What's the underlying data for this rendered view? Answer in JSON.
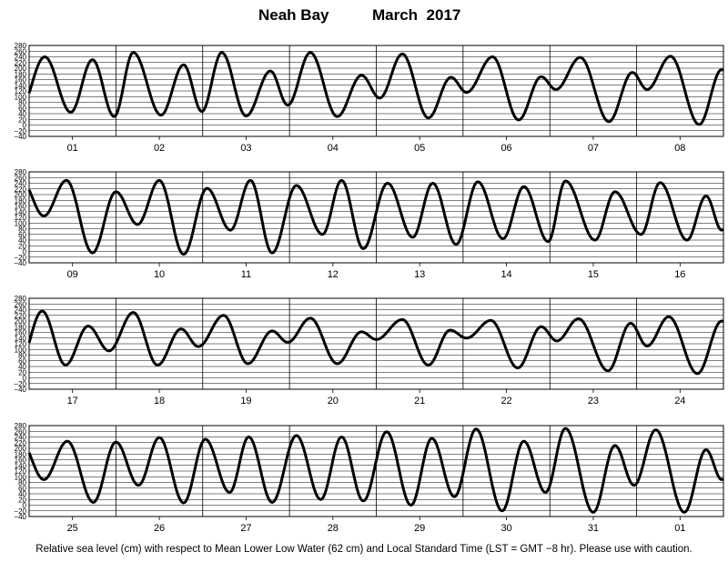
{
  "header": {
    "station": "Neah Bay",
    "month": "March",
    "year": "2017"
  },
  "caption": "Relative sea level (cm) with respect to Mean Lower Low Water (62 cm) and Local Standard Time (LST = GMT −8 hr). Please use with caution.",
  "chart_data": {
    "type": "line",
    "title": "Neah Bay March 2017",
    "ylabel_units": "cm",
    "ylim": [
      -40,
      280
    ],
    "ytick_labels": [
      "−40",
      "−20",
      "0",
      "20",
      "40",
      "60",
      "80",
      "100",
      "120",
      "140",
      "160",
      "180",
      "200",
      "220",
      "240",
      "260",
      "280"
    ],
    "grid": true,
    "panels": [
      {
        "day_labels": [
          "01",
          "02",
          "03",
          "04",
          "05",
          "06",
          "07",
          "08"
        ],
        "series": [
          {
            "x_day": 1,
            "extrema": [
              {
                "t": 0.18,
                "h": 240
              },
              {
                "t": 0.48,
                "h": 45
              },
              {
                "t": 0.73,
                "h": 230
              },
              {
                "t": 0.98,
                "h": 30
              }
            ]
          },
          {
            "x_day": 2,
            "extrema": [
              {
                "t": 0.2,
                "h": 255
              },
              {
                "t": 0.52,
                "h": 35
              },
              {
                "t": 0.78,
                "h": 212
              },
              {
                "t": 0.99,
                "h": 48
              }
            ]
          },
          {
            "x_day": 3,
            "extrema": [
              {
                "t": 0.22,
                "h": 255
              },
              {
                "t": 0.5,
                "h": 32
              },
              {
                "t": 0.78,
                "h": 190
              },
              {
                "t": 0.98,
                "h": 70
              }
            ]
          },
          {
            "x_day": 4,
            "extrema": [
              {
                "t": 0.24,
                "h": 255
              },
              {
                "t": 0.55,
                "h": 30
              },
              {
                "t": 0.83,
                "h": 175
              }
            ]
          },
          {
            "x_day": 5,
            "extrema": [
              {
                "t": 0.04,
                "h": 95
              },
              {
                "t": 0.3,
                "h": 250
              },
              {
                "t": 0.6,
                "h": 25
              },
              {
                "t": 0.86,
                "h": 168
              }
            ]
          },
          {
            "x_day": 6,
            "extrema": [
              {
                "t": 0.04,
                "h": 115
              },
              {
                "t": 0.34,
                "h": 240
              },
              {
                "t": 0.64,
                "h": 18
              },
              {
                "t": 0.9,
                "h": 170
              }
            ]
          },
          {
            "x_day": 7,
            "extrema": [
              {
                "t": 0.07,
                "h": 125
              },
              {
                "t": 0.35,
                "h": 238
              },
              {
                "t": 0.68,
                "h": 12
              },
              {
                "t": 0.95,
                "h": 185
              }
            ]
          },
          {
            "x_day": 8,
            "extrema": [
              {
                "t": 0.12,
                "h": 125
              },
              {
                "t": 0.39,
                "h": 242
              },
              {
                "t": 0.72,
                "h": 2
              },
              {
                "t": 0.98,
                "h": 195
              }
            ]
          }
        ]
      },
      {
        "day_labels": [
          "09",
          "10",
          "11",
          "12",
          "13",
          "14",
          "15",
          "16"
        ],
        "series": [
          {
            "x_day": 9,
            "extrema": [
              {
                "t": 0.17,
                "h": 125
              },
              {
                "t": 0.43,
                "h": 250
              },
              {
                "t": 0.73,
                "h": -5
              }
            ]
          },
          {
            "x_day": 10,
            "extrema": [
              {
                "t": 0.0,
                "h": 210
              },
              {
                "t": 0.25,
                "h": 95
              },
              {
                "t": 0.5,
                "h": 250
              },
              {
                "t": 0.78,
                "h": -10
              }
            ]
          },
          {
            "x_day": 11,
            "extrema": [
              {
                "t": 0.05,
                "h": 222
              },
              {
                "t": 0.32,
                "h": 75
              },
              {
                "t": 0.55,
                "h": 250
              },
              {
                "t": 0.8,
                "h": -5
              }
            ]
          },
          {
            "x_day": 12,
            "extrema": [
              {
                "t": 0.08,
                "h": 232
              },
              {
                "t": 0.38,
                "h": 60
              },
              {
                "t": 0.6,
                "h": 250
              },
              {
                "t": 0.85,
                "h": 10
              }
            ]
          },
          {
            "x_day": 13,
            "extrema": [
              {
                "t": 0.13,
                "h": 240
              },
              {
                "t": 0.42,
                "h": 50
              },
              {
                "t": 0.65,
                "h": 240
              },
              {
                "t": 0.92,
                "h": 25
              }
            ]
          },
          {
            "x_day": 14,
            "extrema": [
              {
                "t": 0.17,
                "h": 245
              },
              {
                "t": 0.46,
                "h": 45
              },
              {
                "t": 0.7,
                "h": 228
              },
              {
                "t": 0.98,
                "h": 35
              }
            ]
          },
          {
            "x_day": 15,
            "extrema": [
              {
                "t": 0.18,
                "h": 248
              },
              {
                "t": 0.52,
                "h": 40
              },
              {
                "t": 0.75,
                "h": 210
              }
            ]
          },
          {
            "x_day": 16,
            "extrema": [
              {
                "t": 0.05,
                "h": 60
              },
              {
                "t": 0.27,
                "h": 242
              },
              {
                "t": 0.58,
                "h": 40
              },
              {
                "t": 0.8,
                "h": 195
              },
              {
                "t": 0.98,
                "h": 75
              }
            ]
          }
        ]
      },
      {
        "day_labels": [
          "17",
          "18",
          "19",
          "20",
          "21",
          "22",
          "23",
          "24"
        ],
        "series": [
          {
            "x_day": 17,
            "extrema": [
              {
                "t": 0.15,
                "h": 235
              },
              {
                "t": 0.42,
                "h": 45
              },
              {
                "t": 0.68,
                "h": 182
              },
              {
                "t": 0.92,
                "h": 95
              }
            ]
          },
          {
            "x_day": 18,
            "extrema": [
              {
                "t": 0.2,
                "h": 230
              },
              {
                "t": 0.48,
                "h": 45
              },
              {
                "t": 0.75,
                "h": 172
              },
              {
                "t": 0.95,
                "h": 110
              }
            ]
          },
          {
            "x_day": 19,
            "extrema": [
              {
                "t": 0.24,
                "h": 220
              },
              {
                "t": 0.52,
                "h": 50
              },
              {
                "t": 0.8,
                "h": 165
              },
              {
                "t": 0.98,
                "h": 125
              }
            ]
          },
          {
            "x_day": 20,
            "extrema": [
              {
                "t": 0.24,
                "h": 210
              },
              {
                "t": 0.55,
                "h": 50
              },
              {
                "t": 0.83,
                "h": 162
              }
            ]
          },
          {
            "x_day": 21,
            "extrema": [
              {
                "t": 0.0,
                "h": 135
              },
              {
                "t": 0.3,
                "h": 205
              },
              {
                "t": 0.6,
                "h": 45
              },
              {
                "t": 0.85,
                "h": 168
              }
            ]
          },
          {
            "x_day": 22,
            "extrema": [
              {
                "t": 0.04,
                "h": 140
              },
              {
                "t": 0.32,
                "h": 202
              },
              {
                "t": 0.63,
                "h": 35
              },
              {
                "t": 0.9,
                "h": 180
              }
            ]
          },
          {
            "x_day": 23,
            "extrema": [
              {
                "t": 0.08,
                "h": 130
              },
              {
                "t": 0.33,
                "h": 208
              },
              {
                "t": 0.67,
                "h": 25
              },
              {
                "t": 0.93,
                "h": 192
              }
            ]
          },
          {
            "x_day": 24,
            "extrema": [
              {
                "t": 0.12,
                "h": 112
              },
              {
                "t": 0.37,
                "h": 215
              },
              {
                "t": 0.7,
                "h": 15
              },
              {
                "t": 0.98,
                "h": 200
              }
            ]
          }
        ]
      },
      {
        "day_labels": [
          "25",
          "26",
          "27",
          "28",
          "29",
          "30",
          "31",
          "01"
        ],
        "series": [
          {
            "x_day": 25,
            "extrema": [
              {
                "t": 0.17,
                "h": 90
              },
              {
                "t": 0.44,
                "h": 225
              },
              {
                "t": 0.74,
                "h": 10
              }
            ]
          },
          {
            "x_day": 26,
            "extrema": [
              {
                "t": 0.0,
                "h": 222
              },
              {
                "t": 0.26,
                "h": 70
              },
              {
                "t": 0.5,
                "h": 238
              },
              {
                "t": 0.78,
                "h": 8
              }
            ]
          },
          {
            "x_day": 27,
            "extrema": [
              {
                "t": 0.03,
                "h": 232
              },
              {
                "t": 0.31,
                "h": 45
              },
              {
                "t": 0.53,
                "h": 240
              },
              {
                "t": 0.8,
                "h": 10
              }
            ]
          },
          {
            "x_day": 28,
            "extrema": [
              {
                "t": 0.08,
                "h": 245
              },
              {
                "t": 0.36,
                "h": 20
              },
              {
                "t": 0.6,
                "h": 240
              },
              {
                "t": 0.85,
                "h": 15
              }
            ]
          },
          {
            "x_day": 29,
            "extrema": [
              {
                "t": 0.12,
                "h": 258
              },
              {
                "t": 0.4,
                "h": 0
              },
              {
                "t": 0.64,
                "h": 235
              },
              {
                "t": 0.9,
                "h": 30
              }
            ]
          },
          {
            "x_day": 30,
            "extrema": [
              {
                "t": 0.15,
                "h": 268
              },
              {
                "t": 0.45,
                "h": -20
              },
              {
                "t": 0.7,
                "h": 225
              },
              {
                "t": 0.95,
                "h": 45
              }
            ]
          },
          {
            "x_day": 31,
            "extrema": [
              {
                "t": 0.18,
                "h": 270
              },
              {
                "t": 0.5,
                "h": -25
              },
              {
                "t": 0.75,
                "h": 210
              },
              {
                "t": 0.97,
                "h": 70
              }
            ]
          },
          {
            "x_day": 1,
            "extrema": [
              {
                "t": 0.22,
                "h": 265
              },
              {
                "t": 0.55,
                "h": -25
              },
              {
                "t": 0.8,
                "h": 195
              },
              {
                "t": 0.98,
                "h": 90
              }
            ]
          }
        ]
      }
    ]
  }
}
